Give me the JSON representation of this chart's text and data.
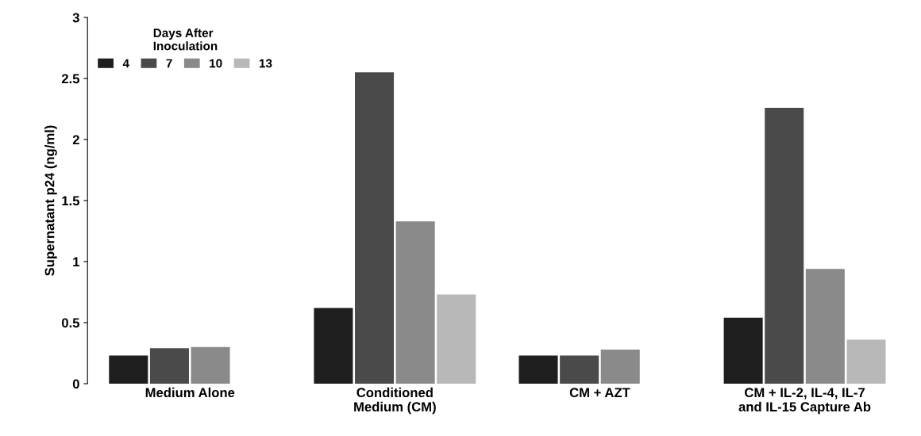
{
  "chart_data": {
    "type": "bar",
    "ylabel": "Supernatant p24 (ng/ml)",
    "categories": [
      "Medium Alone",
      "Conditioned\nMedium (CM)",
      "CM + AZT",
      "CM + IL-2, IL-4, IL-7\nand IL-15 Capture Ab"
    ],
    "legend_title": "Days After\nInoculation",
    "legend": "top left",
    "series": [
      {
        "name": "4",
        "color": "#1e1e1e",
        "values": [
          0.23,
          0.62,
          0.23,
          0.54
        ]
      },
      {
        "name": "7",
        "color": "#4a4a4a",
        "values": [
          0.29,
          2.55,
          0.23,
          2.26
        ]
      },
      {
        "name": "10",
        "color": "#8a8a8a",
        "values": [
          0.3,
          1.33,
          0.28,
          0.94
        ]
      },
      {
        "name": "13",
        "color": "#b8b8b8",
        "values": [
          null,
          0.73,
          null,
          0.36
        ]
      }
    ],
    "ylim": [
      0,
      3
    ],
    "yticks": [
      0,
      0.5,
      1,
      1.5,
      2,
      2.5,
      3
    ],
    "grid": false
  }
}
